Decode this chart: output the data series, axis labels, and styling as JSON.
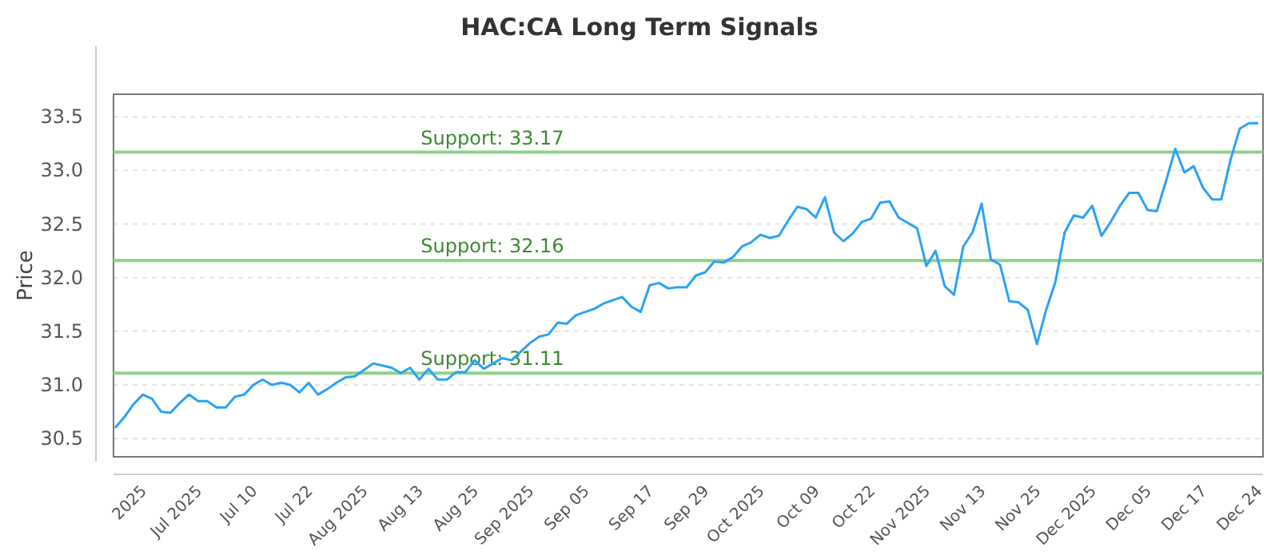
{
  "chart_data": {
    "type": "line",
    "title": "HAC:CA Long Term Signals",
    "ylabel": "Price",
    "categories": [
      null,
      null,
      null,
      "2025",
      null,
      null,
      null,
      null,
      null,
      "Jul 2025",
      null,
      null,
      null,
      null,
      null,
      "Jul 10",
      null,
      null,
      null,
      null,
      null,
      "Jul 22",
      null,
      null,
      null,
      null,
      null,
      "Aug 2025",
      null,
      null,
      null,
      null,
      null,
      "Aug 13",
      null,
      null,
      null,
      null,
      null,
      "Aug 25",
      null,
      null,
      null,
      null,
      null,
      "Sep 2025",
      null,
      null,
      null,
      null,
      null,
      "Sep 05",
      null,
      null,
      null,
      null,
      null,
      null,
      "Sep 17",
      null,
      null,
      null,
      null,
      null,
      "Sep 29",
      null,
      null,
      null,
      null,
      null,
      "Oct 2025",
      null,
      null,
      null,
      null,
      null,
      "Oct 09",
      null,
      null,
      null,
      null,
      null,
      "Oct 22",
      null,
      null,
      null,
      null,
      null,
      "Nov 2025",
      null,
      null,
      null,
      null,
      null,
      "Nov 13",
      null,
      null,
      null,
      null,
      null,
      "Nov 25",
      null,
      null,
      null,
      null,
      null,
      "Dec 2025",
      null,
      null,
      null,
      null,
      null,
      "Dec 05",
      null,
      null,
      null,
      null,
      null,
      "Dec 17",
      null,
      null,
      null,
      null,
      null,
      "Dec 24"
    ],
    "series": [
      {
        "color": "#2aa3f5",
        "values": [
          30.6,
          30.7,
          30.82,
          30.91,
          30.87,
          30.75,
          30.74,
          30.83,
          30.91,
          30.85,
          30.85,
          30.79,
          30.79,
          30.89,
          30.91,
          31.0,
          31.05,
          31.0,
          31.02,
          31.0,
          30.93,
          31.02,
          30.91,
          30.96,
          31.02,
          31.07,
          31.08,
          31.14,
          31.2,
          31.18,
          31.16,
          31.11,
          31.16,
          31.05,
          31.15,
          31.05,
          31.05,
          31.12,
          31.12,
          31.23,
          31.15,
          31.2,
          31.25,
          31.23,
          31.31,
          31.39,
          31.45,
          31.47,
          31.58,
          31.57,
          31.65,
          31.68,
          31.71,
          31.76,
          31.79,
          31.82,
          31.73,
          31.68,
          31.93,
          31.95,
          31.9,
          31.91,
          31.91,
          32.02,
          32.05,
          32.15,
          32.14,
          32.19,
          32.29,
          32.33,
          32.4,
          32.37,
          32.39,
          32.53,
          32.66,
          32.64,
          32.56,
          32.75,
          32.42,
          32.34,
          32.41,
          32.52,
          32.55,
          32.7,
          32.71,
          32.56,
          32.51,
          32.46,
          32.11,
          32.25,
          31.92,
          31.84,
          32.29,
          32.42,
          32.69,
          32.17,
          32.12,
          31.78,
          31.77,
          31.7,
          31.38,
          31.7,
          31.96,
          32.42,
          32.58,
          32.56,
          32.67,
          32.39,
          32.52,
          32.67,
          32.79,
          32.79,
          32.63,
          32.62,
          32.9,
          33.2,
          32.98,
          33.04,
          32.84,
          32.73,
          32.73,
          33.1,
          33.39,
          33.44,
          33.44
        ]
      }
    ],
    "ylim": [
      30.33,
      33.71
    ],
    "yticks": [
      30.5,
      {
        "value": 31,
        "label": "31.0"
      },
      31.5,
      {
        "value": 32,
        "label": "32.0"
      },
      32.5,
      {
        "value": 33,
        "label": "33.0"
      },
      33.5
    ],
    "grid": "y",
    "ref_lines": [
      {
        "axis": "y",
        "value": 33.17,
        "label": "Support: 33.17",
        "color": "#8fd18a"
      },
      {
        "axis": "y",
        "value": 32.16,
        "label": "Support: 32.16",
        "color": "#8fd18a"
      },
      {
        "axis": "y",
        "value": 31.11,
        "label": "Support: 31.11",
        "color": "#8fd18a"
      }
    ]
  }
}
